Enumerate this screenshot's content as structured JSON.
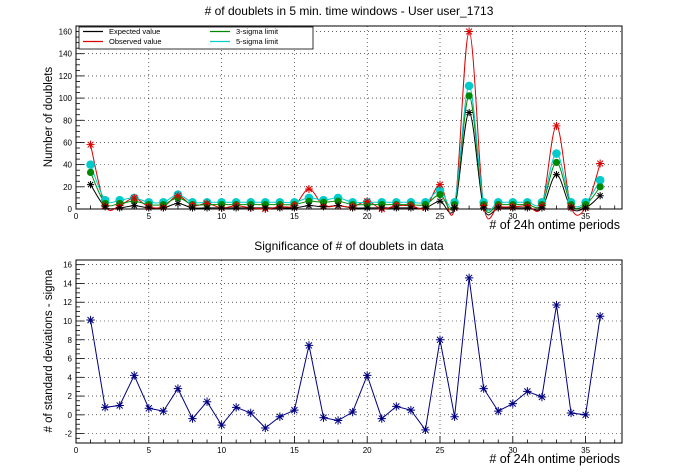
{
  "chart_data": [
    {
      "type": "line",
      "title": "# of doublets in 5 min. time windows - User user_1713",
      "xlabel": "# of 24h ontime periods",
      "ylabel": "Number of doublets",
      "xlim": [
        0,
        37.5
      ],
      "ylim": [
        0,
        165
      ],
      "xticks": [
        0,
        5,
        10,
        15,
        20,
        25,
        30,
        35
      ],
      "yticks": [
        0,
        20,
        40,
        60,
        80,
        100,
        120,
        140,
        160
      ],
      "grid": true,
      "legend_position": "top-left",
      "x": [
        1,
        2,
        3,
        4,
        5,
        6,
        7,
        8,
        9,
        10,
        11,
        12,
        13,
        14,
        15,
        16,
        17,
        18,
        19,
        20,
        21,
        22,
        23,
        24,
        25,
        26,
        27,
        28,
        29,
        30,
        31,
        32,
        33,
        34,
        35,
        36
      ],
      "series": [
        {
          "name": "Expected value",
          "color": "#000000",
          "values": [
            22,
            2,
            1,
            3,
            1,
            1,
            5,
            1,
            1,
            1,
            1,
            1,
            1,
            1,
            1,
            3,
            2,
            3,
            1,
            1,
            1,
            1,
            1,
            1,
            7,
            1,
            87,
            1,
            1,
            1,
            1,
            1,
            31,
            1,
            1,
            12
          ]
        },
        {
          "name": "Observed value",
          "color": "#dd0000",
          "values": [
            58,
            3,
            3,
            10,
            2,
            2,
            12,
            3,
            5,
            1,
            3,
            1,
            0,
            2,
            3,
            18,
            3,
            3,
            2,
            7,
            0,
            3,
            3,
            1,
            22,
            1,
            160,
            3,
            2,
            2,
            3,
            3,
            75,
            2,
            1,
            41
          ]
        },
        {
          "name": "3-sigma limit",
          "color": "#008800",
          "values": [
            33,
            5,
            5,
            7,
            4,
            4,
            10,
            4,
            4,
            4,
            4,
            4,
            4,
            4,
            4,
            7,
            6,
            7,
            4,
            4,
            4,
            4,
            4,
            4,
            13,
            4,
            102,
            4,
            4,
            4,
            4,
            4,
            42,
            4,
            4,
            20
          ]
        },
        {
          "name": "5-sigma limit",
          "color": "#00cccc",
          "values": [
            40,
            8,
            8,
            10,
            6,
            6,
            13,
            6,
            6,
            6,
            6,
            6,
            6,
            6,
            6,
            10,
            8,
            10,
            6,
            6,
            6,
            6,
            6,
            6,
            17,
            6,
            111,
            6,
            6,
            6,
            6,
            6,
            50,
            6,
            6,
            26
          ]
        }
      ]
    },
    {
      "type": "line",
      "title": "Significance of # of doublets in data",
      "xlabel": "# of 24h ontime periods",
      "ylabel": "# of standard deviations - sigma",
      "xlim": [
        0,
        37.5
      ],
      "ylim": [
        -3,
        16.5
      ],
      "xticks": [
        0,
        5,
        10,
        15,
        20,
        25,
        30,
        35
      ],
      "yticks": [
        -2,
        0,
        2,
        4,
        6,
        8,
        10,
        12,
        14,
        16
      ],
      "grid": true,
      "x": [
        1,
        2,
        3,
        4,
        5,
        6,
        7,
        8,
        9,
        10,
        11,
        12,
        13,
        14,
        15,
        16,
        17,
        18,
        19,
        20,
        21,
        22,
        23,
        24,
        25,
        26,
        27,
        28,
        29,
        30,
        31,
        32,
        33,
        34,
        35,
        36
      ],
      "series": [
        {
          "color": "#000080",
          "values": [
            10.1,
            0.8,
            1.0,
            4.2,
            0.7,
            0.4,
            2.8,
            -0.4,
            1.4,
            -1.1,
            0.8,
            0.2,
            -1.4,
            -0.2,
            0.5,
            7.4,
            -0.3,
            -0.6,
            0.3,
            4.2,
            -0.4,
            0.9,
            0.5,
            -1.6,
            8.0,
            -0.2,
            14.6,
            2.8,
            0.4,
            1.2,
            2.5,
            1.9,
            11.7,
            0.2,
            0.0,
            10.5
          ]
        }
      ]
    }
  ]
}
